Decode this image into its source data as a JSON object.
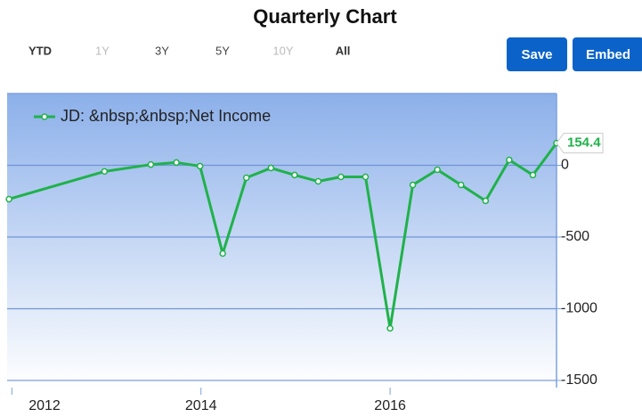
{
  "toolbar": {
    "ranges": [
      "YTD",
      "1Y",
      "3Y",
      "5Y",
      "10Y",
      "All"
    ],
    "buttons": [
      "Save",
      "Embed"
    ]
  },
  "chart_data": {
    "type": "line",
    "title": "Quarterly Chart",
    "series": [
      {
        "name": "JD: &nbsp;&nbsp;Net Income",
        "color": "#1fb24a",
        "x": [
          2011.97,
          2012.98,
          2013.47,
          2013.74,
          2013.99,
          2014.23,
          2014.48,
          2014.74,
          2014.99,
          2015.24,
          2015.48,
          2015.74,
          2016.0,
          2016.24,
          2016.5,
          2016.75,
          2017.01,
          2017.26,
          2017.51,
          2017.76
        ],
        "values": [
          -236,
          -43,
          5,
          19,
          -6,
          -615,
          -87,
          -19,
          -68,
          -112,
          -81,
          -81,
          -1137,
          -137,
          -31,
          -137,
          -248,
          37,
          -68,
          154.4
        ]
      }
    ],
    "xlim": [
      2011.95,
      2017.76
    ],
    "xticks": [
      2012,
      2014,
      2016
    ],
    "ylim": [
      -1550,
      500
    ],
    "yticks": [
      0,
      -500,
      -1000,
      -1500
    ],
    "grid": true,
    "legend": "top-left"
  }
}
